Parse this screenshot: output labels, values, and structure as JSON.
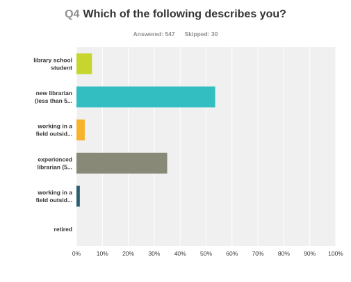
{
  "question": {
    "number": "Q4",
    "text": "Which of the following describes you?"
  },
  "stats": {
    "answered_label": "Answered: 547",
    "skipped_label": "Skipped: 30"
  },
  "chart_data": {
    "type": "bar",
    "orientation": "horizontal",
    "categories": [
      [
        "library school",
        "student"
      ],
      [
        "new librarian",
        "(less than 5..."
      ],
      [
        "working in a",
        "field outsid..."
      ],
      [
        "experienced",
        "librarian (5..."
      ],
      [
        "working in a",
        "field outsid..."
      ],
      [
        "retired"
      ]
    ],
    "values": [
      6,
      53.5,
      3.2,
      35,
      1.3,
      0
    ],
    "colors": [
      "#c6d62e",
      "#33bfc1",
      "#f7b32b",
      "#898978",
      "#2b5e6e",
      "#898978"
    ],
    "xlim": [
      0,
      100
    ],
    "x_ticks": [
      "0%",
      "10%",
      "20%",
      "30%",
      "40%",
      "50%",
      "60%",
      "70%",
      "80%",
      "90%",
      "100%"
    ],
    "grid": true,
    "plot_background": "#f0f0f0",
    "grid_color": "#ffffff"
  }
}
